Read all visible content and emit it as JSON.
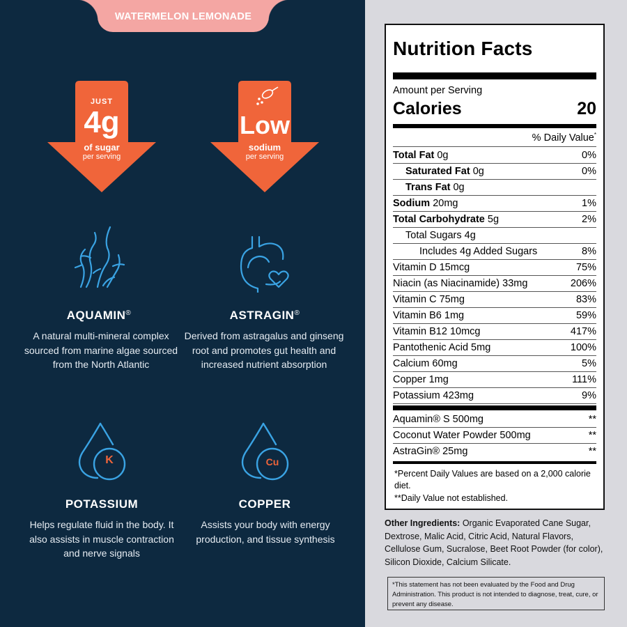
{
  "flavor": "WATERMELON LEMONADE",
  "badges": {
    "sugar": {
      "top": "JUST",
      "big": "4g",
      "mid": "of sugar",
      "sub": "per serving"
    },
    "sodium": {
      "big": "Low",
      "mid": "sodium",
      "sub": "per serving",
      "icon": "salt-spoon-icon"
    }
  },
  "features": [
    {
      "icon": "seaweed-icon",
      "title": "AQUAMIN",
      "mark": "®",
      "desc": "A natural multi-mineral complex sourced from marine algae sourced from the North Atlantic"
    },
    {
      "icon": "stomach-heart-icon",
      "title": "ASTRAGIN",
      "mark": "®",
      "desc": "Derived from astragalus and ginseng root and promotes gut health and increased nutrient absorption"
    },
    {
      "icon": "drop-k-icon",
      "badge": "K",
      "title": "POTASSIUM",
      "desc": "Helps regulate fluid in the body. It also assists in muscle contraction and nerve signals"
    },
    {
      "icon": "drop-cu-icon",
      "badge": "Cu",
      "title": "COPPER",
      "desc": "Assists your body with energy production, and tissue synthesis"
    }
  ],
  "nutrition": {
    "title": "Nutrition Facts",
    "amount_per_serving": "Amount per Serving",
    "calories_label": "Calories",
    "calories_value": "20",
    "dv_header": "% Daily Value",
    "rows": [
      {
        "bold": "Total Fat",
        "rest": " 0g",
        "dv": "0%",
        "indent": 0
      },
      {
        "bold": "Saturated Fat",
        "rest": " 0g",
        "dv": "0%",
        "indent": 1
      },
      {
        "bold": "Trans Fat",
        "rest": " 0g",
        "dv": "",
        "indent": 1
      },
      {
        "bold": "Sodium",
        "rest": " 20mg",
        "dv": "1%",
        "indent": 0
      },
      {
        "bold": "Total Carbohydrate",
        "rest": " 5g",
        "dv": "2%",
        "indent": 0
      },
      {
        "bold": "",
        "rest": "Total Sugars 4g",
        "dv": "",
        "indent": 1
      },
      {
        "bold": "",
        "rest": "Includes 4g Added Sugars",
        "dv": "8%",
        "indent": 2
      },
      {
        "bold": "",
        "rest": "Vitamin D 15mcg",
        "dv": "75%",
        "indent": 0
      },
      {
        "bold": "",
        "rest": "Niacin (as Niacinamide) 33mg",
        "dv": "206%",
        "indent": 0
      },
      {
        "bold": "",
        "rest": "Vitamin C 75mg",
        "dv": "83%",
        "indent": 0
      },
      {
        "bold": "",
        "rest": "Vitamin B6 1mg",
        "dv": "59%",
        "indent": 0
      },
      {
        "bold": "",
        "rest": "Vitamin B12 10mcg",
        "dv": "417%",
        "indent": 0
      },
      {
        "bold": "",
        "rest": "Pantothenic Acid 5mg",
        "dv": "100%",
        "indent": 0
      },
      {
        "bold": "",
        "rest": "Calcium 60mg",
        "dv": "5%",
        "indent": 0
      },
      {
        "bold": "",
        "rest": "Copper 1mg",
        "dv": "111%",
        "indent": 0
      },
      {
        "bold": "",
        "rest": "Potassium 423mg",
        "dv": "9%",
        "indent": 0
      }
    ],
    "other_rows": [
      {
        "name": "Aquamin® S 500mg",
        "dv": "**"
      },
      {
        "name": "Coconut Water Powder 500mg",
        "dv": "**"
      },
      {
        "name": "AstraGin® 25mg",
        "dv": "**"
      }
    ],
    "footnote1": "*Percent Daily Values are based on a 2,000 calorie diet.",
    "footnote2": "**Daily Value not established."
  },
  "other_ingredients": {
    "label": "Other Ingredients:",
    "text": " Organic Evaporated Cane Sugar, Dextrose, Malic Acid, Citric Acid, Natural Flavors, Cellulose Gum, Sucralose, Beet Root Powder (for color), Silicon Dioxide, Calcium Silicate."
  },
  "disclaimer": "*This statement has not been evaluated by the Food and Drug Administration. This product is not intended to diagnose, treat, cure, or prevent any disease.",
  "colors": {
    "navy": "#0d2940",
    "orange": "#f0653a",
    "pink": "#f4a6a3",
    "blue": "#3aa3e3",
    "panel": "#d9d9de"
  }
}
